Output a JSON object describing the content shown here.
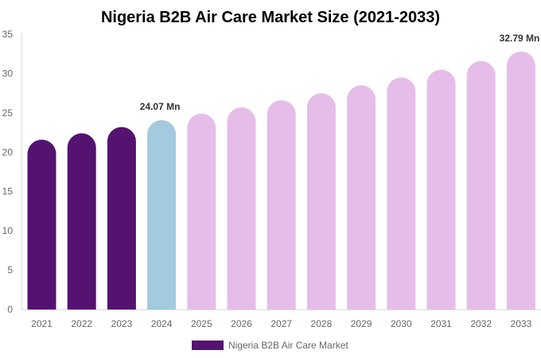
{
  "chart_data": {
    "type": "bar",
    "title": "Nigeria B2B Air Care Market Size (2021-2033)",
    "categories": [
      "2021",
      "2022",
      "2023",
      "2024",
      "2025",
      "2026",
      "2027",
      "2028",
      "2029",
      "2030",
      "2031",
      "2032",
      "2033"
    ],
    "series": [
      {
        "name": "Nigeria B2B Air Care Market",
        "values": [
          21.6,
          22.4,
          23.2,
          24.07,
          24.9,
          25.7,
          26.6,
          27.5,
          28.5,
          29.5,
          30.5,
          31.6,
          32.79
        ]
      }
    ],
    "data_labels": {
      "3": "24.07 Mn",
      "12": "32.79 Mn"
    },
    "ylim": [
      0,
      35
    ],
    "yticks": [
      "0",
      "5",
      "10",
      "15",
      "20",
      "25",
      "30",
      "35"
    ],
    "xlabel": "",
    "ylabel": "",
    "grid": false,
    "legend": "bottom",
    "colors": {
      "historical": "#541370",
      "current": "#a3cade",
      "forecast": "#e6bde9"
    }
  }
}
